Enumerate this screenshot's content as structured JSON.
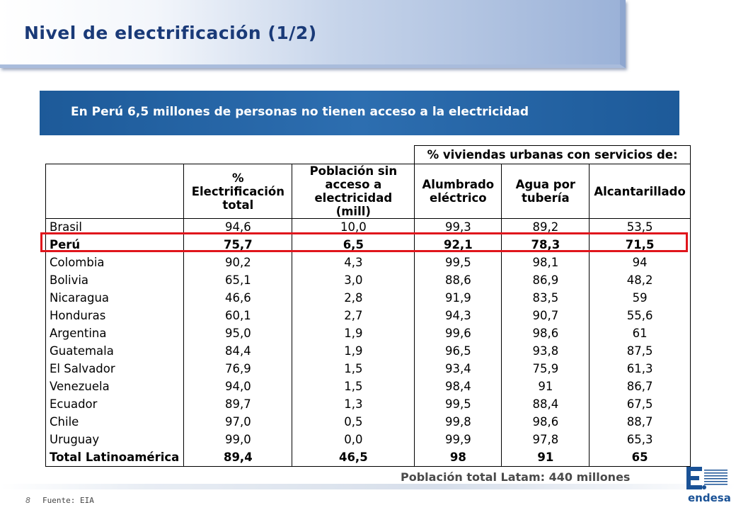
{
  "title": "Nivel de electrificación (1/2)",
  "headline": "En Perú 6,5 millones de personas no tienen acceso a la electricidad",
  "table": {
    "group_header": "% viviendas urbanas con servicios de:",
    "headers": {
      "country": "",
      "electrification": "% Electrificación total",
      "population": "Población sin acceso a electricidad (mill)",
      "lighting": "Alumbrado eléctrico",
      "water": "Agua por tubería",
      "sewer": "Alcantarillado"
    },
    "rows": [
      {
        "country": "Brasil",
        "electrification": "94,6",
        "population": "10,0",
        "lighting": "99,3",
        "water": "89,2",
        "sewer": "53,5",
        "bold": false
      },
      {
        "country": "Perú",
        "electrification": "75,7",
        "population": "6,5",
        "lighting": "92,1",
        "water": "78,3",
        "sewer": "71,5",
        "bold": true
      },
      {
        "country": "Colombia",
        "electrification": "90,2",
        "population": "4,3",
        "lighting": "99,5",
        "water": "98,1",
        "sewer": "94",
        "bold": false
      },
      {
        "country": "Bolivia",
        "electrification": "65,1",
        "population": "3,0",
        "lighting": "88,6",
        "water": "86,9",
        "sewer": "48,2",
        "bold": false
      },
      {
        "country": "Nicaragua",
        "electrification": "46,6",
        "population": "2,8",
        "lighting": "91,9",
        "water": "83,5",
        "sewer": "59",
        "bold": false
      },
      {
        "country": "Honduras",
        "electrification": "60,1",
        "population": "2,7",
        "lighting": "94,3",
        "water": "90,7",
        "sewer": "55,6",
        "bold": false
      },
      {
        "country": "Argentina",
        "electrification": "95,0",
        "population": "1,9",
        "lighting": "99,6",
        "water": "98,6",
        "sewer": "61",
        "bold": false
      },
      {
        "country": "Guatemala",
        "electrification": "84,4",
        "population": "1,9",
        "lighting": "96,5",
        "water": "93,8",
        "sewer": "87,5",
        "bold": false
      },
      {
        "country": "El Salvador",
        "electrification": "76,9",
        "population": "1,5",
        "lighting": "93,4",
        "water": "75,9",
        "sewer": "61,3",
        "bold": false
      },
      {
        "country": "Venezuela",
        "electrification": "94,0",
        "population": "1,5",
        "lighting": "98,4",
        "water": "91",
        "sewer": "86,7",
        "bold": false
      },
      {
        "country": "Ecuador",
        "electrification": "89,7",
        "population": "1,3",
        "lighting": "99,5",
        "water": "88,4",
        "sewer": "67,5",
        "bold": false
      },
      {
        "country": "Chile",
        "electrification": "97,0",
        "population": "0,5",
        "lighting": "99,8",
        "water": "98,6",
        "sewer": "88,7",
        "bold": false
      },
      {
        "country": "Uruguay",
        "electrification": "99,0",
        "population": "0,0",
        "lighting": "99,9",
        "water": "97,8",
        "sewer": "65,3",
        "bold": false
      },
      {
        "country": "Total Latinoamérica",
        "electrification": "89,4",
        "population": "46,5",
        "lighting": "98",
        "water": "91",
        "sewer": "65",
        "bold": true
      }
    ]
  },
  "total_population": "Población total Latam: 440 millones",
  "footer": {
    "page_number": "8",
    "source": "Fuente: EIA"
  },
  "logo": {
    "text": "endesa",
    "color": "#1a5296"
  },
  "colors": {
    "title": "#1a3a78",
    "headline_bar": "#1d5a99",
    "highlight": "#e0151c"
  }
}
